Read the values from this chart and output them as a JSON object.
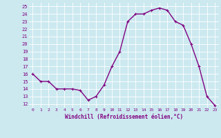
{
  "x": [
    0,
    1,
    2,
    3,
    4,
    5,
    6,
    7,
    8,
    9,
    10,
    11,
    12,
    13,
    14,
    15,
    16,
    17,
    18,
    19,
    20,
    21,
    22,
    23
  ],
  "y": [
    16.0,
    15.0,
    15.0,
    14.0,
    14.0,
    14.0,
    13.8,
    12.5,
    13.0,
    14.5,
    17.0,
    19.0,
    23.0,
    24.0,
    24.0,
    24.5,
    24.8,
    24.5,
    23.0,
    22.5,
    20.0,
    17.0,
    13.0,
    11.8
  ],
  "line_color": "#800080",
  "marker": "+",
  "marker_size": 3,
  "marker_linewidth": 0.8,
  "background_color": "#cce9f0",
  "grid_color": "#ffffff",
  "xlabel": "Windchill (Refroidissement éolien,°C)",
  "ylabel_ticks": [
    12,
    13,
    14,
    15,
    16,
    17,
    18,
    19,
    20,
    21,
    22,
    23,
    24,
    25
  ],
  "xtick_labels": [
    "0",
    "1",
    "2",
    "3",
    "4",
    "5",
    "6",
    "7",
    "8",
    "9",
    "10",
    "11",
    "12",
    "13",
    "14",
    "15",
    "16",
    "17",
    "18",
    "19",
    "20",
    "21",
    "22",
    "23"
  ],
  "ylim": [
    11.5,
    25.5
  ],
  "xlim": [
    -0.5,
    23.5
  ],
  "font_color": "#800080",
  "line_width": 1.0,
  "xtick_fontsize": 4.5,
  "ytick_fontsize": 5.0,
  "xlabel_fontsize": 5.5
}
